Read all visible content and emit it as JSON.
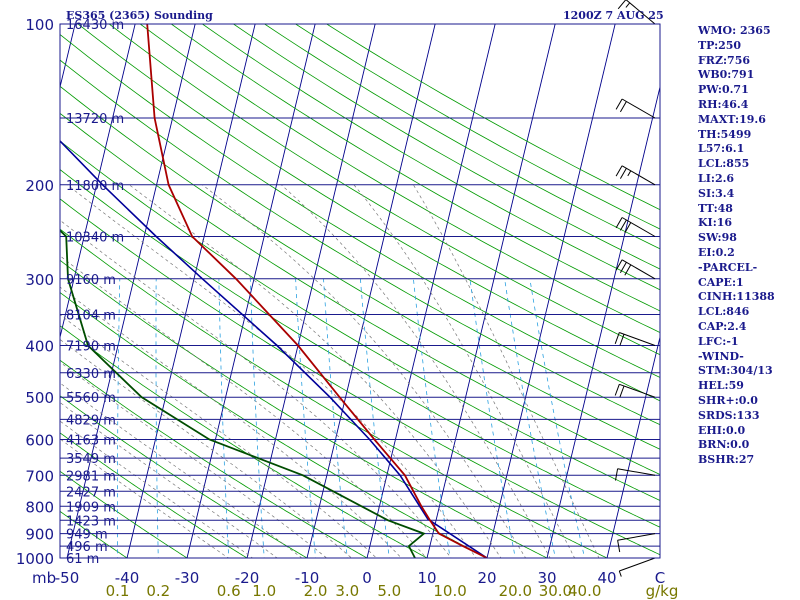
{
  "header": {
    "title": "ES365 (2365) Sounding",
    "datetime": "1200Z  7 AUG 25"
  },
  "stats": [
    "WMO: 2365",
    "TP:250",
    "FRZ:756",
    "WB0:791",
    "PW:0.71",
    "RH:46.4",
    "MAXT:19.6",
    "TH:5499",
    "L57:6.1",
    "LCL:855",
    "LI:2.6",
    "SI:3.4",
    "TT:48",
    "KI:16",
    "SW:98",
    "EI:0.2",
    "-PARCEL-",
    "CAPE:1",
    "CINH:11388",
    "LCL:846",
    "CAP:2.4",
    "LFC:-1",
    "-WIND-",
    "STM:304/13",
    "HEL:59",
    "SHR+:0.0",
    "SRDS:133",
    "EHI:0.0",
    "BRN:0.0",
    "BSHR:27"
  ],
  "colors": {
    "isobar": "#1a1a8c",
    "isotherm": "#00008b",
    "dry_adiabat": "#009a00",
    "mixing_ratio": "#2aa0e0",
    "moist_adiabat": "#777777",
    "temperature": "#aa0000",
    "dewpoint": "#004d00",
    "parcel": "#000099",
    "text": "#1a1a8c",
    "ws_label": "#777700"
  },
  "chart_data": {
    "type": "skew-t log-p sounding",
    "title": "ES365 (2365) Sounding",
    "ylim": [
      1000,
      100
    ],
    "xlim": [
      -50,
      50
    ],
    "xlabel_unit": "mb",
    "ws_unit": "g/kg",
    "pressure_ticks": [
      1000,
      900,
      800,
      700,
      600,
      500,
      400,
      300,
      200,
      100
    ],
    "temp_ticks": [
      "-50",
      "-40",
      "-30",
      "-20",
      "-10",
      "0",
      "10",
      "20",
      "30",
      "40",
      "C"
    ],
    "mixing_ratio_ticks": [
      "0.1",
      "0.2",
      "0.6",
      "1.0",
      "2.0",
      "3.0",
      "5.0",
      "10.0",
      "20.0",
      "30.0",
      "40.0"
    ],
    "heights": [
      {
        "p": 1000,
        "h": "61 m"
      },
      {
        "p": 950,
        "h": "496 m"
      },
      {
        "p": 900,
        "h": "949 m"
      },
      {
        "p": 850,
        "h": "1423 m"
      },
      {
        "p": 800,
        "h": "1909 m"
      },
      {
        "p": 750,
        "h": "2427 m"
      },
      {
        "p": 700,
        "h": "2981 m"
      },
      {
        "p": 650,
        "h": "3549 m"
      },
      {
        "p": 600,
        "h": "4163 m"
      },
      {
        "p": 550,
        "h": "4829 m"
      },
      {
        "p": 500,
        "h": "5560 m"
      },
      {
        "p": 450,
        "h": "6330 m"
      },
      {
        "p": 400,
        "h": "7190 m"
      },
      {
        "p": 350,
        "h": "8104 m"
      },
      {
        "p": 300,
        "h": "9160 m"
      },
      {
        "p": 250,
        "h": "10340 m"
      },
      {
        "p": 200,
        "h": "11800 m"
      },
      {
        "p": 150,
        "h": "13720 m"
      },
      {
        "p": 100,
        "h": "16430 m"
      }
    ],
    "temperature": [
      {
        "p": 1000,
        "t": 20
      },
      {
        "p": 950,
        "t": 15.5
      },
      {
        "p": 900,
        "t": 11
      },
      {
        "p": 850,
        "t": 9
      },
      {
        "p": 800,
        "t": 7
      },
      {
        "p": 700,
        "t": 3
      },
      {
        "p": 600,
        "t": -3.5
      },
      {
        "p": 500,
        "t": -11
      },
      {
        "p": 400,
        "t": -20
      },
      {
        "p": 300,
        "t": -33
      },
      {
        "p": 250,
        "t": -42
      },
      {
        "p": 200,
        "t": -48
      },
      {
        "p": 150,
        "t": -53
      },
      {
        "p": 100,
        "t": -58
      }
    ],
    "dewpoint": [
      {
        "p": 1000,
        "t": 8
      },
      {
        "p": 950,
        "t": 6.5
      },
      {
        "p": 900,
        "t": 8.5
      },
      {
        "p": 850,
        "t": 2
      },
      {
        "p": 700,
        "t": -14
      },
      {
        "p": 600,
        "t": -31
      },
      {
        "p": 500,
        "t": -44
      },
      {
        "p": 400,
        "t": -55
      },
      {
        "p": 300,
        "t": -61
      },
      {
        "p": 250,
        "t": -63
      },
      {
        "p": 200,
        "t": -74
      },
      {
        "p": 100,
        "t": -95
      }
    ],
    "parcel": [
      {
        "p": 1000,
        "t": 20
      },
      {
        "p": 846,
        "t": 8.6
      },
      {
        "p": 700,
        "t": 2.2
      },
      {
        "p": 600,
        "t": -4.3
      },
      {
        "p": 500,
        "t": -12.6
      },
      {
        "p": 400,
        "t": -23.5
      },
      {
        "p": 300,
        "t": -38.6
      },
      {
        "p": 250,
        "t": -48
      },
      {
        "p": 200,
        "t": -59
      },
      {
        "p": 150,
        "t": -72.5
      },
      {
        "p": 110,
        "t": -86
      }
    ],
    "wind_barbs": [
      {
        "p": 1000,
        "dir": 250,
        "spd": 5
      },
      {
        "p": 900,
        "dir": 260,
        "spd": 10
      },
      {
        "p": 700,
        "dir": 280,
        "spd": 10
      },
      {
        "p": 500,
        "dir": 290,
        "spd": 20
      },
      {
        "p": 400,
        "dir": 290,
        "spd": 20
      },
      {
        "p": 300,
        "dir": 300,
        "spd": 30
      },
      {
        "p": 250,
        "dir": 300,
        "spd": 30
      },
      {
        "p": 200,
        "dir": 300,
        "spd": 25
      },
      {
        "p": 150,
        "dir": 300,
        "spd": 20
      },
      {
        "p": 100,
        "dir": 310,
        "spd": 15
      }
    ]
  }
}
